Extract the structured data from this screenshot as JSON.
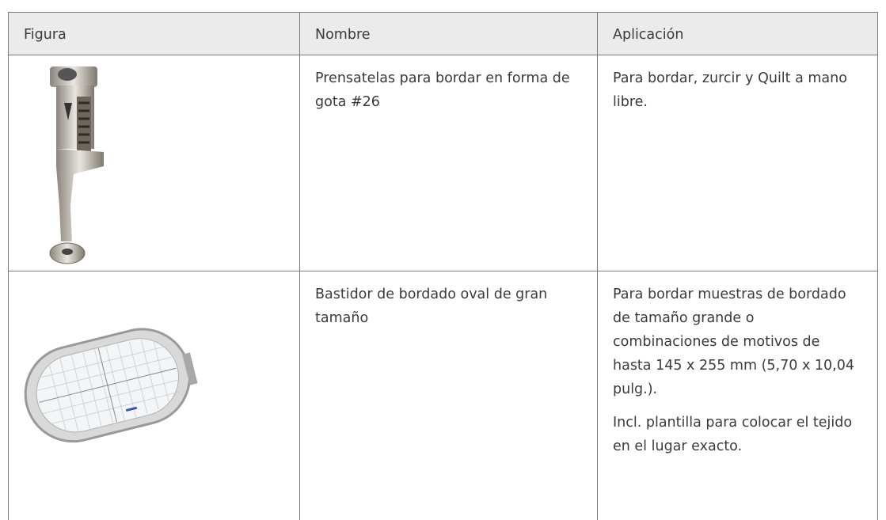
{
  "table": {
    "header": [
      "Figura",
      "Nombre",
      "Aplicación"
    ],
    "rows": [
      {
        "name": "Prensatelas para bordar en forma de gota #26",
        "application": [
          "Para bordar, zurcir y Quilt a mano libre."
        ]
      },
      {
        "name": "Bastidor de bordado oval de gran tamaño",
        "application": [
          "Para bordar muestras de bordado de tamaño grande o combinaciones de motivos de hasta 145 x 255 mm (5,70 x 10,04 pulg.).",
          "Incl. plantilla para colocar el tejido en el lugar exacto."
        ]
      }
    ]
  }
}
